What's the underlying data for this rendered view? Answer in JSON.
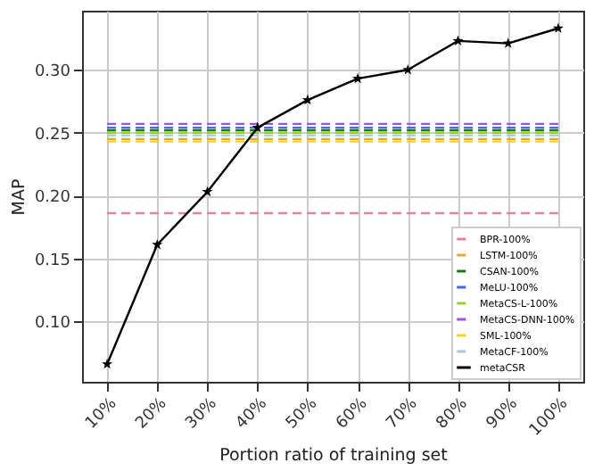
{
  "chart_data": {
    "type": "line",
    "xlabel": "Portion ratio of training set",
    "ylabel": "MAP",
    "categories": [
      "10%",
      "20%",
      "30%",
      "40%",
      "50%",
      "60%",
      "70%",
      "80%",
      "90%",
      "100%"
    ],
    "ylim": [
      0.052,
      0.347
    ],
    "yticks": [
      {
        "value": 0.1,
        "label": "0.10"
      },
      0.15,
      {
        "value": 0.2,
        "label": "0.20"
      },
      0.25,
      {
        "value": 0.3,
        "label": "0.30"
      }
    ],
    "grid": true,
    "legend": "bottom right",
    "series": [
      {
        "name": "BPR-100%",
        "color": "#e8829b",
        "line_style": "dashed",
        "marker": "none",
        "values": [
          0.186,
          0.186,
          0.186,
          0.186,
          0.186,
          0.186,
          0.186,
          0.186,
          0.186,
          0.186
        ]
      },
      {
        "name": "LSTM-100%",
        "color": "#e6a82a",
        "line_style": "dashed",
        "marker": "none",
        "values": [
          0.245,
          0.245,
          0.245,
          0.245,
          0.245,
          0.245,
          0.245,
          0.245,
          0.245,
          0.245
        ]
      },
      {
        "name": "CSAN-100%",
        "color": "#1a7a1a",
        "line_style": "dashed",
        "marker": "none",
        "values": [
          0.252,
          0.252,
          0.252,
          0.252,
          0.252,
          0.252,
          0.252,
          0.252,
          0.252,
          0.252
        ]
      },
      {
        "name": "MeLU-100%",
        "color": "#4169e1",
        "line_style": "dashed",
        "marker": "none",
        "values": [
          0.254,
          0.254,
          0.254,
          0.254,
          0.254,
          0.254,
          0.254,
          0.254,
          0.254,
          0.254
        ]
      },
      {
        "name": "MetaCS-L-100%",
        "color": "#9acd32",
        "line_style": "dashed",
        "marker": "none",
        "values": [
          0.25,
          0.25,
          0.25,
          0.25,
          0.25,
          0.25,
          0.25,
          0.25,
          0.25,
          0.25
        ]
      },
      {
        "name": "MetaCS-DNN-100%",
        "color": "#a050e0",
        "line_style": "dashed",
        "marker": "none",
        "values": [
          0.257,
          0.257,
          0.257,
          0.257,
          0.257,
          0.257,
          0.257,
          0.257,
          0.257,
          0.257
        ]
      },
      {
        "name": "SML-100%",
        "color": "#f5d31a",
        "line_style": "dashed",
        "marker": "none",
        "values": [
          0.243,
          0.243,
          0.243,
          0.243,
          0.243,
          0.243,
          0.243,
          0.243,
          0.243,
          0.243
        ]
      },
      {
        "name": "MetaCF-100%",
        "color": "#b0c4de",
        "line_style": "dashed",
        "marker": "none",
        "values": [
          0.248,
          0.248,
          0.248,
          0.248,
          0.248,
          0.248,
          0.248,
          0.248,
          0.248,
          0.248
        ]
      },
      {
        "name": "metaCSR",
        "color": "#000000",
        "line_style": "solid",
        "marker": "star",
        "values": [
          0.066,
          0.161,
          0.203,
          0.254,
          0.276,
          0.293,
          0.3,
          0.323,
          0.321,
          0.333
        ]
      }
    ]
  }
}
